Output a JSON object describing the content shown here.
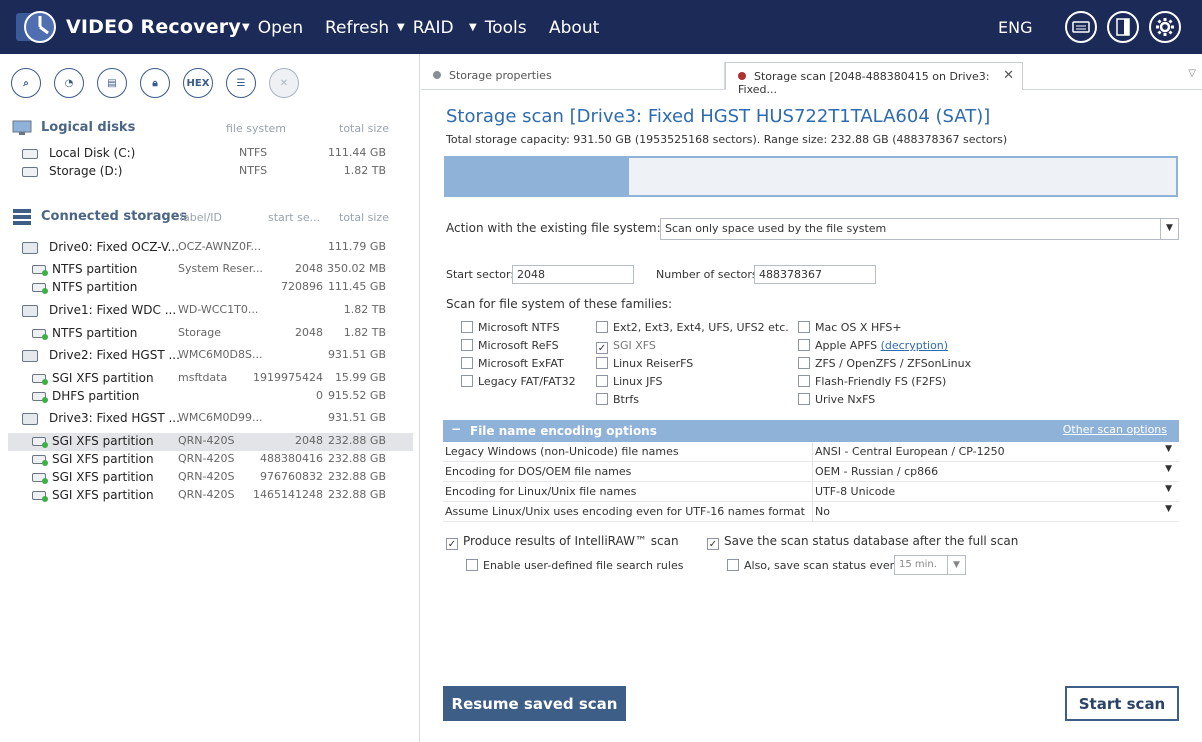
{
  "app": {
    "title": "VIDEO Recovery",
    "menu": [
      {
        "label": "Open",
        "has_dropdown": true
      },
      {
        "label": "Refresh",
        "has_dropdown": false
      },
      {
        "label": "RAID",
        "has_dropdown": true
      },
      {
        "label": "Tools",
        "has_dropdown": true
      },
      {
        "label": "About",
        "has_dropdown": false
      }
    ],
    "language": "ENG",
    "top_icons": [
      "keyboard-icon",
      "panel-icon",
      "gear-icon"
    ]
  },
  "toolbar": {
    "icons": [
      "search-icon",
      "chart-icon",
      "file-icon",
      "lock-icon",
      "hex-icon",
      "list-icon",
      "close-icon"
    ],
    "hex_label": "HEX"
  },
  "logical_disks": {
    "title": "Logical disks",
    "col_fs": "file system",
    "col_size": "total size",
    "items": [
      {
        "name": "Local Disk (C:)",
        "fs": "NTFS",
        "size": "111.44 GB"
      },
      {
        "name": "Storage (D:)",
        "fs": "NTFS",
        "size": "1.82 TB"
      }
    ]
  },
  "connected_storages": {
    "title": "Connected storages",
    "col_label": "label/ID",
    "col_start": "start se...",
    "col_size": "total size",
    "items": [
      {
        "kind": "drive",
        "name": "Drive0: Fixed OCZ-V...",
        "label": "OCZ-AWNZ0F...",
        "start": "",
        "size": "111.79 GB"
      },
      {
        "kind": "part",
        "name": "NTFS partition",
        "label": "System Reser...",
        "start": "2048",
        "size": "350.02 MB"
      },
      {
        "kind": "part",
        "name": "NTFS partition",
        "label": "",
        "start": "720896",
        "size": "111.45 GB"
      },
      {
        "kind": "drive",
        "name": "Drive1: Fixed WDC ...",
        "label": "WD-WCC1T0...",
        "start": "",
        "size": "1.82 TB"
      },
      {
        "kind": "part",
        "name": "NTFS partition",
        "label": "Storage",
        "start": "2048",
        "size": "1.82 TB"
      },
      {
        "kind": "drive",
        "name": "Drive2: Fixed HGST ...",
        "label": "WMC6M0D8S...",
        "start": "",
        "size": "931.51 GB"
      },
      {
        "kind": "part",
        "name": "SGI XFS partition",
        "label": "msftdata",
        "start": "1919975424",
        "size": "15.99 GB"
      },
      {
        "kind": "part",
        "name": "DHFS partition",
        "label": "",
        "start": "0",
        "size": "915.52 GB"
      },
      {
        "kind": "drive",
        "name": "Drive3: Fixed HGST ...",
        "label": "WMC6M0D99...",
        "start": "",
        "size": "931.51 GB"
      },
      {
        "kind": "part",
        "name": "SGI XFS partition",
        "label": "QRN-420S",
        "start": "2048",
        "size": "232.88 GB",
        "selected": true
      },
      {
        "kind": "part",
        "name": "SGI XFS partition",
        "label": "QRN-420S",
        "start": "488380416",
        "size": "232.88 GB"
      },
      {
        "kind": "part",
        "name": "SGI XFS partition",
        "label": "QRN-420S",
        "start": "976760832",
        "size": "232.88 GB"
      },
      {
        "kind": "part",
        "name": "SGI XFS partition",
        "label": "QRN-420S",
        "start": "1465141248",
        "size": "232.88 GB"
      }
    ]
  },
  "tabs": [
    {
      "label": "Storage properties",
      "dot_color": "#8a8f96"
    },
    {
      "label": "Storage scan [2048-488380415 on Drive3: Fixed...",
      "dot_color": "#b03030"
    }
  ],
  "scan": {
    "title": "Storage scan [Drive3: Fixed HGST HUS722T1TALA604 (SAT)]",
    "subtitle": "Total storage capacity: 931.50 GB (1953525168 sectors). Range size: 232.88 GB (488378367 sectors)",
    "progress": 0.25,
    "action_label": "Action with the existing file system:",
    "action_value": "Scan only space used by the file system",
    "start_sector_label": "Start sector:",
    "start_sector_value": "2048",
    "num_sectors_label": "Number of sectors:",
    "num_sectors_value": "488378367",
    "families_label": "Scan for file system of these families:",
    "fs_col1": [
      {
        "label": "Microsoft NTFS",
        "checked": false
      },
      {
        "label": "Microsoft ReFS",
        "checked": false
      },
      {
        "label": "Microsoft ExFAT",
        "checked": false
      },
      {
        "label": "Legacy FAT/FAT32",
        "checked": false
      }
    ],
    "fs_col2": [
      {
        "label": "Ext2, Ext3, Ext4, UFS, UFS2 etc.",
        "checked": false
      },
      {
        "label": "SGI XFS",
        "checked": true
      },
      {
        "label": "Linux ReiserFS",
        "checked": false
      },
      {
        "label": "Linux JFS",
        "checked": false
      },
      {
        "label": "Btrfs",
        "checked": false
      }
    ],
    "fs_col3": [
      {
        "label": "Mac OS X HFS+",
        "checked": false
      },
      {
        "label": "Apple APFS",
        "link": "(decryption)",
        "checked": false
      },
      {
        "label": "ZFS / OpenZFS / ZFSonLinux",
        "checked": false
      },
      {
        "label": "Flash-Friendly FS (F2FS)",
        "checked": false
      },
      {
        "label": "Urive NxFS",
        "checked": false
      }
    ],
    "encoding": {
      "title": "File name encoding options",
      "collapse_symbol": "−",
      "other_link": "Other scan options",
      "rows": [
        {
          "key": "Legacy Windows (non-Unicode) file names",
          "value": "ANSI - Central European / CP-1250"
        },
        {
          "key": "Encoding for DOS/OEM file names",
          "value": "OEM - Russian / cp866"
        },
        {
          "key": "Encoding for Linux/Unix file names",
          "value": "UTF-8 Unicode"
        },
        {
          "key": "Assume Linux/Unix uses encoding even for UTF-16 names format",
          "value": "No"
        }
      ]
    },
    "intelliraw": {
      "label": "Produce results of IntelliRAW™ scan",
      "checked": true
    },
    "user_rules": {
      "label": "Enable user-defined file search rules",
      "checked": false
    },
    "save_status": {
      "label": "Save the scan status database after the full scan",
      "checked": true
    },
    "also_save": {
      "label": "Also, save scan status every",
      "checked": false
    },
    "interval": "15 min.",
    "resume_label": "Resume saved scan",
    "start_label": "Start scan"
  }
}
